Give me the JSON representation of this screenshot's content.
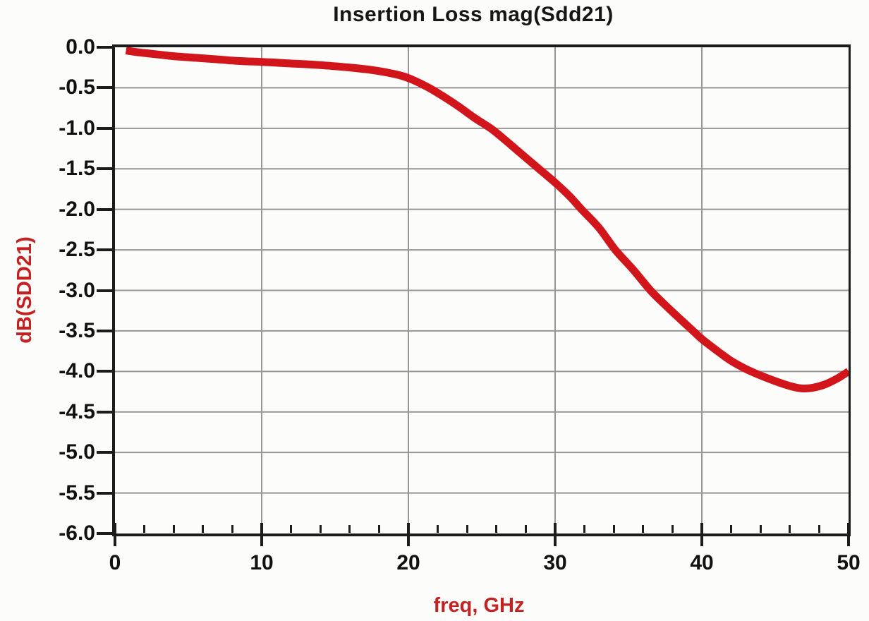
{
  "page": {
    "background": "#fcfcfa"
  },
  "style": {
    "axis_color": "#1c1c1c",
    "grid_color": "#969696",
    "tick_label_color": "#111111",
    "axis_title_color": "#c42222",
    "curve_color": "#d2141b",
    "title_color": "#161616"
  },
  "chart_data": {
    "type": "line",
    "title": "Insertion Loss mag(Sdd21)",
    "xlabel": "freq, GHz",
    "ylabel": "dB(SDD21)",
    "xlim": [
      0,
      50
    ],
    "ylim": [
      -6.0,
      0.0
    ],
    "grid": true,
    "legend_position": "none",
    "x_tick_labels": [
      "0",
      "10",
      "20",
      "30",
      "40",
      "50"
    ],
    "x_major_ticks": [
      0,
      10,
      20,
      30,
      40,
      50
    ],
    "x_minor_tick_step": 2,
    "y_tick_labels": [
      "0.0",
      "-0.5",
      "-1.0",
      "-1.5",
      "-2.0",
      "-2.5",
      "-3.0",
      "-3.5",
      "-4.0",
      "-4.5",
      "-5.0",
      "-5.5",
      "-6.0"
    ],
    "y_ticks": [
      0.0,
      -0.5,
      -1.0,
      -1.5,
      -2.0,
      -2.5,
      -3.0,
      -3.5,
      -4.0,
      -4.5,
      -5.0,
      -5.5,
      -6.0
    ],
    "series": [
      {
        "name": "dB(SDD21)",
        "color": "#d2141b",
        "x": [
          0.75,
          1.5,
          2.5,
          4,
          5.5,
          7,
          8.5,
          10,
          12,
          14,
          16,
          17.5,
          18.5,
          19.5,
          20.4,
          21.4,
          22.5,
          23.5,
          24.5,
          25.6,
          26.5,
          27.6,
          28.9,
          30,
          31,
          31.8,
          33,
          34.1,
          35.3,
          36.5,
          37.5,
          38.5,
          39.4,
          40,
          41,
          42,
          43,
          44,
          45,
          46,
          46.8,
          47.6,
          48.4,
          49.2,
          50
        ],
        "y": [
          -0.04,
          -0.06,
          -0.08,
          -0.11,
          -0.13,
          -0.15,
          -0.17,
          -0.18,
          -0.2,
          -0.22,
          -0.25,
          -0.28,
          -0.31,
          -0.35,
          -0.41,
          -0.5,
          -0.62,
          -0.74,
          -0.87,
          -1.0,
          -1.13,
          -1.3,
          -1.5,
          -1.67,
          -1.84,
          -2.0,
          -2.23,
          -2.5,
          -2.74,
          -3.0,
          -3.18,
          -3.35,
          -3.5,
          -3.6,
          -3.74,
          -3.87,
          -3.97,
          -4.05,
          -4.12,
          -4.18,
          -4.21,
          -4.2,
          -4.16,
          -4.09,
          -4.0
        ]
      }
    ]
  }
}
